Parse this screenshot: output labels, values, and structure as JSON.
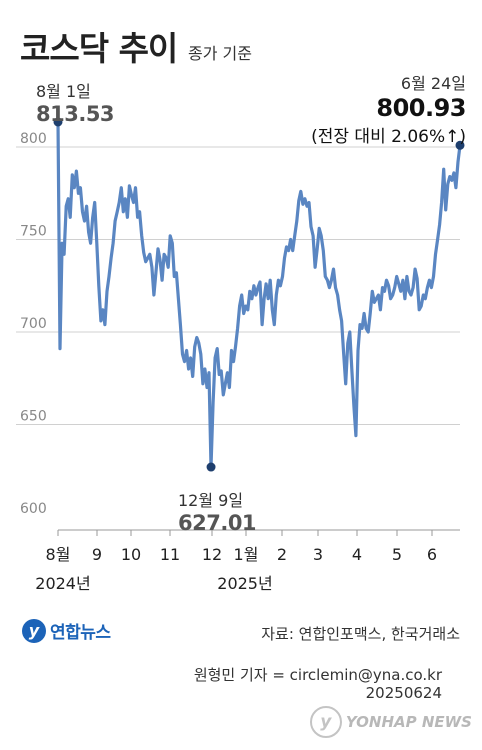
{
  "header": {
    "title": "코스닥 추이",
    "subtitle": "종가 기준"
  },
  "annotations": {
    "start": {
      "date": "8월 1일",
      "value": "813.53"
    },
    "low": {
      "date": "12월 9일",
      "value": "627.01"
    },
    "end": {
      "date": "6월 24일",
      "value": "800.93",
      "change": "(전장 대비 2.06%↑)"
    }
  },
  "footer": {
    "logo_text": "연합뉴스",
    "source": "자료: 연합인포맥스, 한국거래소",
    "reporter": "원형민 기자 = circlemin@yna.co.kr",
    "date_code": "20250624",
    "watermark": "YONHAP NEWS"
  },
  "colors": {
    "line": "#5a86c2",
    "marker": "#1e3f6e",
    "grid": "#d0d0d0"
  },
  "chart_data": {
    "type": "line",
    "title": "코스닥 추이",
    "subtitle": "종가 기준",
    "ylim": [
      600,
      820
    ],
    "yticks": [
      600,
      650,
      700,
      750,
      800
    ],
    "xtick_labels": [
      "8월",
      "9",
      "10",
      "11",
      "12",
      "1월",
      "2",
      "3",
      "4",
      "5",
      "6"
    ],
    "year_labels": [
      "2024년",
      "2025년"
    ],
    "grid": true,
    "highlighted_points": [
      {
        "date": "8월 1일",
        "value": 813.53
      },
      {
        "date": "12월 9일",
        "value": 627.01
      },
      {
        "date": "6월 24일",
        "value": 800.93
      }
    ],
    "series": [
      {
        "values": [
          813.53,
          691,
          748,
          742,
          768,
          772,
          762,
          785,
          778,
          787,
          775,
          778,
          765,
          760,
          768,
          754,
          748,
          762,
          770,
          748,
          725,
          706,
          712,
          704,
          722,
          730,
          740,
          748,
          760,
          765,
          770,
          778,
          765,
          772,
          762,
          779,
          774,
          770,
          778,
          762,
          765,
          752,
          743,
          738,
          740,
          742,
          735,
          720,
          732,
          745,
          739,
          728,
          742,
          740,
          735,
          752,
          748,
          730,
          732,
          718,
          704,
          688,
          684,
          690,
          680,
          686,
          676,
          692,
          697,
          694,
          688,
          672,
          680,
          670,
          678,
          627.01,
          662,
          686,
          691,
          677,
          679,
          666,
          672,
          678,
          670,
          690,
          684,
          692,
          702,
          714,
          720,
          710,
          714,
          712,
          722,
          718,
          725,
          720,
          724,
          727,
          704,
          718,
          726,
          718,
          728,
          712,
          704,
          720,
          728,
          725,
          730,
          740,
          746,
          744,
          750,
          744,
          752,
          760,
          771,
          776,
          769,
          772,
          768,
          770,
          757,
          752,
          735,
          745,
          756,
          752,
          744,
          730,
          728,
          724,
          728,
          734,
          724,
          720,
          712,
          706,
          688,
          672,
          694,
          700,
          680,
          660,
          644,
          690,
          704,
          702,
          710,
          702,
          700,
          710,
          722,
          716,
          718,
          720,
          712,
          724,
          722,
          728,
          725,
          718,
          720,
          724,
          730,
          726,
          722,
          728,
          718,
          730,
          722,
          720,
          724,
          734,
          729,
          712,
          714,
          720,
          718,
          724,
          728,
          724,
          730,
          742,
          750,
          758,
          770,
          788,
          766,
          780,
          784,
          782,
          786,
          778,
          792,
          800.93
        ]
      }
    ]
  }
}
